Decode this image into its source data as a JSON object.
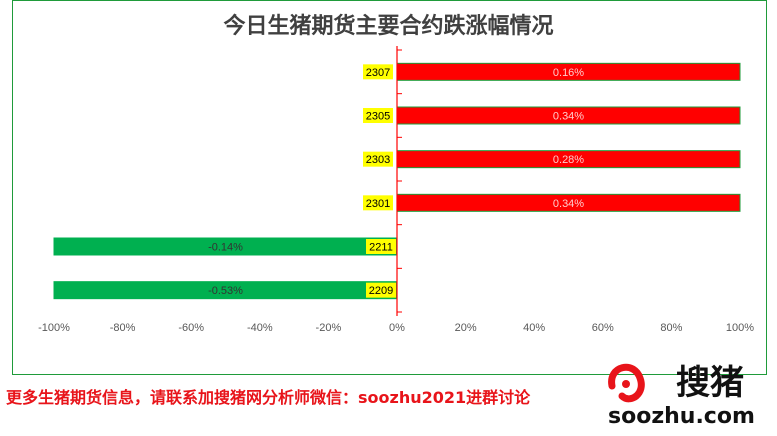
{
  "chart_data": {
    "type": "bar",
    "orientation": "horizontal",
    "title": "今日生猪期货主要合约跌涨幅情况",
    "categories": [
      "2307",
      "2305",
      "2303",
      "2301",
      "2211",
      "2209"
    ],
    "values": [
      0.16,
      0.34,
      0.28,
      0.34,
      -0.14,
      -0.53
    ],
    "data_labels": [
      "0.16%",
      "0.34%",
      "0.28%",
      "0.34%",
      "-0.14%",
      "-0.53%"
    ],
    "xlim": [
      -100,
      100
    ],
    "x_ticks": [
      "-100%",
      "-80%",
      "-60%",
      "-40%",
      "-20%",
      "0%",
      "20%",
      "40%",
      "60%",
      "80%",
      "100%"
    ],
    "colors": {
      "positive": "#ff0000",
      "negative": "#00b050",
      "axis": "#ff0000",
      "label_bg": "#ffff00"
    }
  },
  "footer": {
    "text": "更多生猪期货信息，请联系加搜猪网分析师微信：soozhu2021进群讨论"
  },
  "logo": {
    "name": "搜猪",
    "site": "soozhu.com"
  }
}
